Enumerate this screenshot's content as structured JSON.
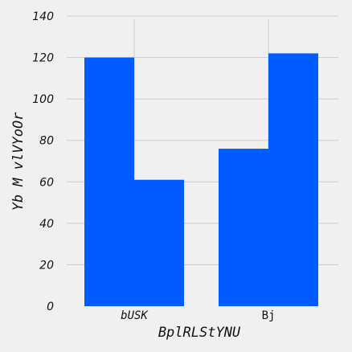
{
  "chart_data": {
    "type": "bar",
    "categories": [
      "bUSK",
      "Bj"
    ],
    "series": [
      {
        "values": [
          120,
          76
        ]
      },
      {
        "values": [
          61,
          122
        ]
      }
    ],
    "colors": [
      "#005cff",
      "#005cff"
    ],
    "xlabel": "BplRLStYNU",
    "ylabel": "Yb M vlVYoOr",
    "ylim": [
      0,
      140
    ],
    "yticks": [
      0,
      20,
      40,
      60,
      80,
      100,
      120,
      140
    ],
    "grid": true
  }
}
